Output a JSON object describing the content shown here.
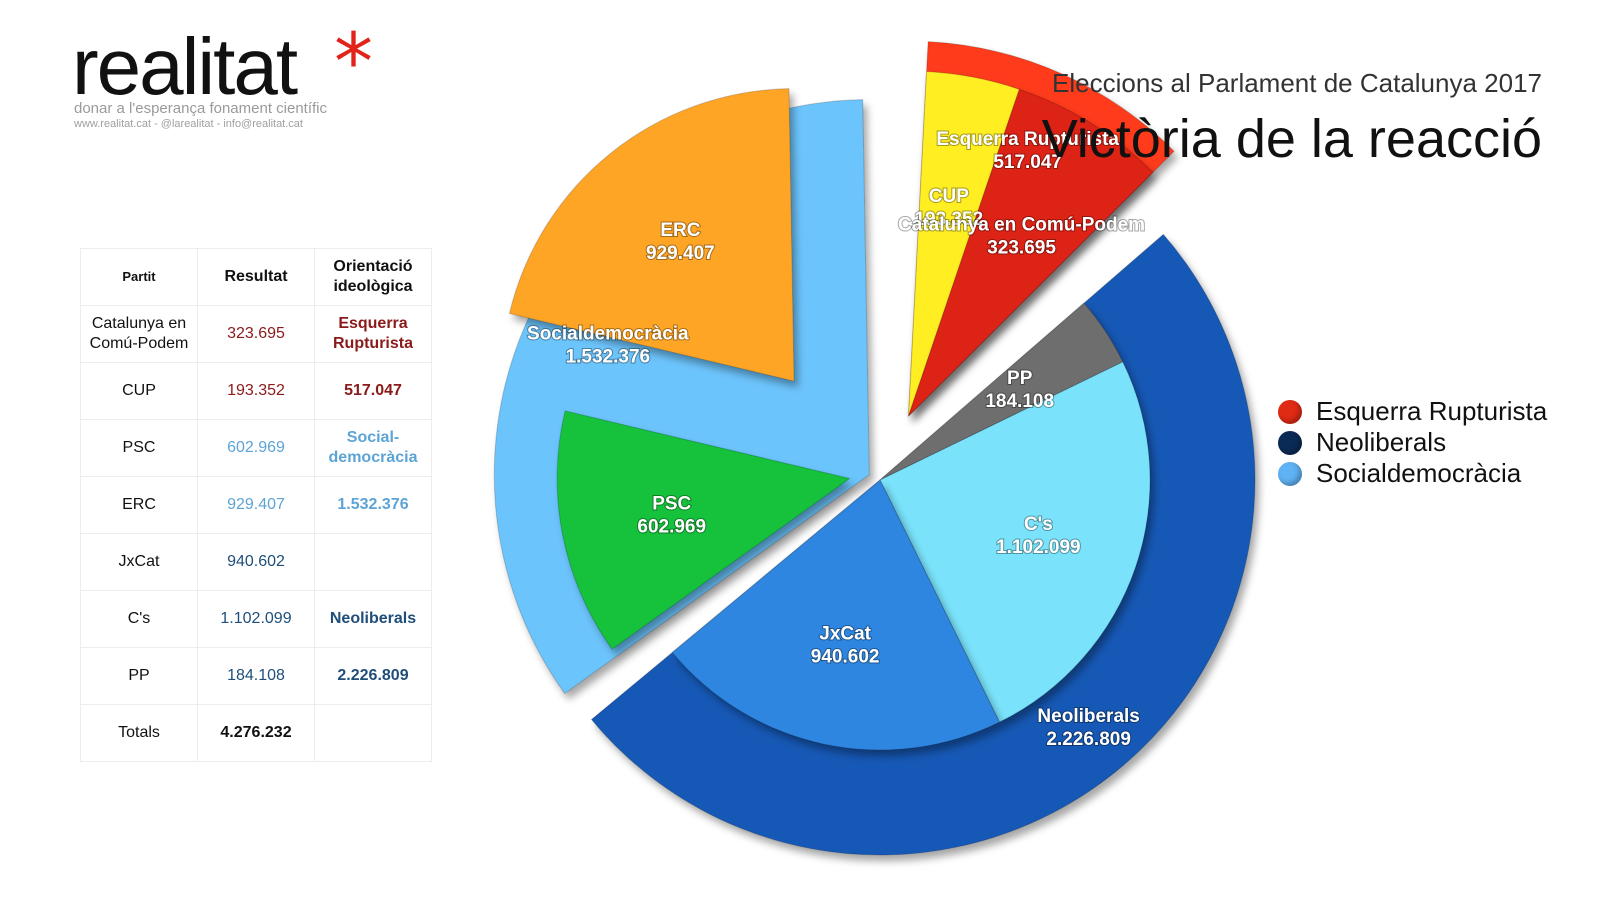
{
  "logo": {
    "word": "realitat",
    "star": "*",
    "tagline": "donar a l'esperança fonament científic",
    "contact": "www.realitat.cat - @larealitat - info@realitat.cat"
  },
  "subtitle": "Eleccions al Parlament de Catalunya 2017",
  "title": "Victòria de la reacció",
  "table": {
    "headers": [
      "Partit",
      "Resultat",
      "Orientació ideològica"
    ],
    "rows": [
      {
        "party": "Catalunya en Comú-Podem",
        "result": "323.695",
        "orientation": "Esquerra Rupturista"
      },
      {
        "party": "CUP",
        "result": "193.352",
        "orientation": "517.047"
      },
      {
        "party": "PSC",
        "result": "602.969",
        "orientation": "Social-democràcia"
      },
      {
        "party": "ERC",
        "result": "929.407",
        "orientation": "1.532.376"
      },
      {
        "party": "JxCat",
        "result": "940.602",
        "orientation": ""
      },
      {
        "party": "C's",
        "result": "1.102.099",
        "orientation": "Neoliberals"
      },
      {
        "party": "PP",
        "result": "184.108",
        "orientation": "2.226.809"
      },
      {
        "party": "Totals",
        "result": "4.276.232",
        "orientation": ""
      }
    ]
  },
  "chart_data": {
    "type": "pie",
    "title": "Victòria de la reacció",
    "subtitle": "Eleccions al Parlament de Catalunya 2017",
    "total": 4276232,
    "groups": [
      {
        "name": "Esquerra Rupturista",
        "label": "517.047",
        "value": 517047,
        "color": "#ff3b1a",
        "parties": [
          {
            "name": "CUP",
            "label": "193.352",
            "value": 193352,
            "color": "#ffee22"
          },
          {
            "name": "Catalunya en Comú-Podem",
            "label": "323.695",
            "value": 323695,
            "color": "#dd2215"
          }
        ]
      },
      {
        "name": "Neoliberals",
        "label": "2.226.809",
        "value": 2226809,
        "color": "#1559b5",
        "parties": [
          {
            "name": "PP",
            "label": "184.108",
            "value": 184108,
            "color": "#6e6e6e"
          },
          {
            "name": "C's",
            "label": "1.102.099",
            "value": 1102099,
            "color": "#7ae3fb"
          },
          {
            "name": "JxCat",
            "label": "940.602",
            "value": 940602,
            "color": "#2f86e0"
          }
        ]
      },
      {
        "name": "Socialdemocràcia",
        "label": "1.532.376",
        "value": 1532376,
        "color": "#6cc4fc",
        "parties": [
          {
            "name": "PSC",
            "label": "602.969",
            "value": 602969,
            "color": "#12c13a"
          },
          {
            "name": "ERC",
            "label": "929.407",
            "value": 929407,
            "color": "#ffa526"
          }
        ]
      }
    ]
  },
  "legend": [
    {
      "label": "Esquerra Rupturista",
      "color": "#e02a14"
    },
    {
      "label": "Neoliberals",
      "color": "#0b2b57"
    },
    {
      "label": "Socialdemocràcia",
      "color": "#5fb2f4"
    }
  ]
}
